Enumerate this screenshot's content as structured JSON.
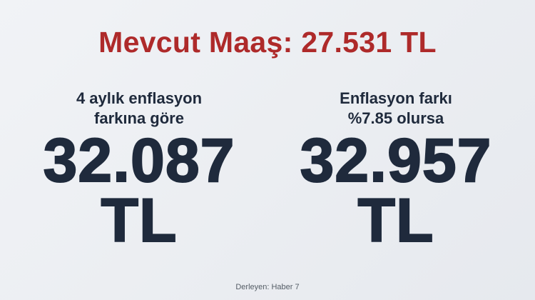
{
  "title": "Mevcut Maaş: 27.531 TL",
  "left": {
    "subtitle_line1": "4 aylık enflasyon",
    "subtitle_line2": "farkına göre",
    "amount": "32.087",
    "currency": "TL"
  },
  "right": {
    "subtitle_line1": "Enflasyon farkı",
    "subtitle_line2": "%7.85 olursa",
    "amount": "32.957",
    "currency": "TL"
  },
  "credit": "Derleyen: Haber 7",
  "colors": {
    "title": "#ae2a2a",
    "text": "#1f2a3c",
    "background": "#eceef2"
  }
}
